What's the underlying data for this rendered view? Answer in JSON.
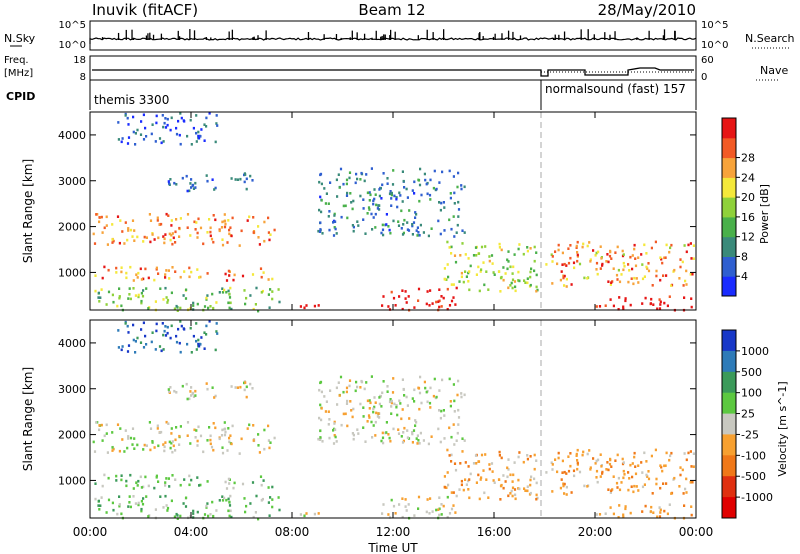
{
  "header": {
    "station": "Inuvik (fitACF)",
    "beam": "Beam 12",
    "date": "28/May/2010"
  },
  "nsky_panel": {
    "left_label": "N.Sky",
    "right_label": "N.Search",
    "left_ticks": [
      "10^5",
      "10^0"
    ],
    "right_ticks": [
      "10^5",
      "10^0"
    ]
  },
  "freq_panel": {
    "left_label_line1": "Freq.",
    "left_label_line2": "[MHz]",
    "right_label": "Nave",
    "left_ticks": [
      "18",
      "8"
    ],
    "right_ticks": [
      "60",
      "0"
    ]
  },
  "cpid_panel": {
    "label": "CPID",
    "mode1": "themis 3300",
    "mode2": "normalsound (fast) 157"
  },
  "chart_data": [
    {
      "type": "heatmap",
      "name": "Power",
      "ylabel": "Slant Range [km]",
      "xlabel": "",
      "x_ticks": [
        "00:00",
        "04:00",
        "08:00",
        "12:00",
        "16:00",
        "20:00",
        "00:00"
      ],
      "y_ticks": [
        "1000",
        "2000",
        "3000",
        "4000"
      ],
      "xlim_hours": [
        0,
        24
      ],
      "ylim_km": [
        180,
        4500
      ],
      "colorbar": {
        "label": "Power [dB]",
        "ticks": [
          "4",
          "8",
          "12",
          "16",
          "20",
          "24",
          "28"
        ],
        "colors": [
          "#1a2cff",
          "#2f5fd0",
          "#3a8a7a",
          "#49b04a",
          "#8fd13a",
          "#f4e83a",
          "#f7a33a",
          "#f25a25",
          "#e61515"
        ]
      },
      "mode_change_hour": 18.0
    },
    {
      "type": "heatmap",
      "name": "Velocity",
      "ylabel": "Slant Range [km]",
      "xlabel": "Time UT",
      "x_ticks": [
        "00:00",
        "04:00",
        "08:00",
        "12:00",
        "16:00",
        "20:00",
        "00:00"
      ],
      "y_ticks": [
        "1000",
        "2000",
        "3000",
        "4000"
      ],
      "xlim_hours": [
        0,
        24
      ],
      "ylim_km": [
        180,
        4500
      ],
      "colorbar": {
        "label": "Velocity [m s^-1]",
        "ticks": [
          "1000",
          "500",
          "100",
          "25",
          "-25",
          "-100",
          "-500",
          "-1000"
        ],
        "colors": [
          "#1838c8",
          "#2e7bb8",
          "#3b9a5a",
          "#5cc840",
          "#c8c8c0",
          "#f7a030",
          "#f07818",
          "#e03010",
          "#e00000"
        ]
      },
      "mode_change_hour": 18.0
    }
  ]
}
